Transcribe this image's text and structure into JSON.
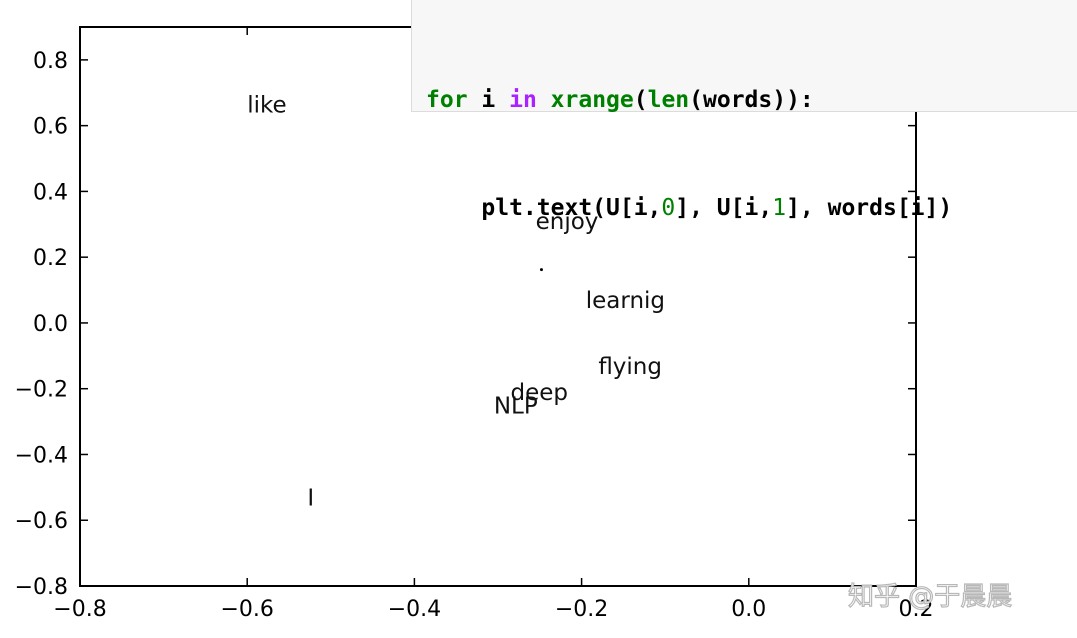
{
  "code": {
    "line1": [
      {
        "text": "for",
        "cls": "kw"
      },
      {
        "text": " i ",
        "cls": ""
      },
      {
        "text": "in",
        "cls": "op"
      },
      {
        "text": " ",
        "cls": ""
      },
      {
        "text": "xrange",
        "cls": "fn"
      },
      {
        "text": "(",
        "cls": ""
      },
      {
        "text": "len",
        "cls": "fn"
      },
      {
        "text": "(words)):",
        "cls": ""
      }
    ],
    "line2": [
      {
        "text": "    plt.text(U[i,",
        "cls": ""
      },
      {
        "text": "0",
        "cls": "num"
      },
      {
        "text": "], U[i,",
        "cls": ""
      },
      {
        "text": "1",
        "cls": "num"
      },
      {
        "text": "], words[i])",
        "cls": ""
      }
    ]
  },
  "chart_data": {
    "type": "scatter",
    "xlim": [
      -0.8,
      0.2
    ],
    "ylim": [
      -0.8,
      0.9
    ],
    "x_ticks": [
      -0.8,
      -0.6,
      -0.4,
      -0.2,
      0.0,
      0.2
    ],
    "x_tick_labels": [
      "−0.8",
      "−0.6",
      "−0.4",
      "−0.2",
      "0.0",
      "0.2"
    ],
    "y_ticks": [
      0.8,
      0.6,
      0.4,
      0.2,
      0.0,
      -0.2,
      -0.4,
      -0.6,
      -0.8
    ],
    "y_tick_labels": [
      "0.8",
      "0.6",
      "0.4",
      "0.2",
      "0.0",
      "−0.2",
      "−0.4",
      "−0.6",
      "−0.8"
    ],
    "grid": false,
    "points": [
      {
        "label": "like",
        "x": -0.6,
        "y": 0.64
      },
      {
        "label": "enjoy",
        "x": -0.255,
        "y": 0.285
      },
      {
        "label": "learnig",
        "x": -0.195,
        "y": 0.045
      },
      {
        "label": "flying",
        "x": -0.18,
        "y": -0.155
      },
      {
        "label": "deep",
        "x": -0.285,
        "y": -0.235
      },
      {
        "label": "NLP",
        "x": -0.305,
        "y": -0.275
      },
      {
        "label": "I",
        "x": -0.528,
        "y": -0.555
      }
    ],
    "markers": [
      {
        "x": -0.248,
        "y": 0.162
      }
    ]
  },
  "watermark": {
    "text": "知乎 @于晨晨"
  }
}
